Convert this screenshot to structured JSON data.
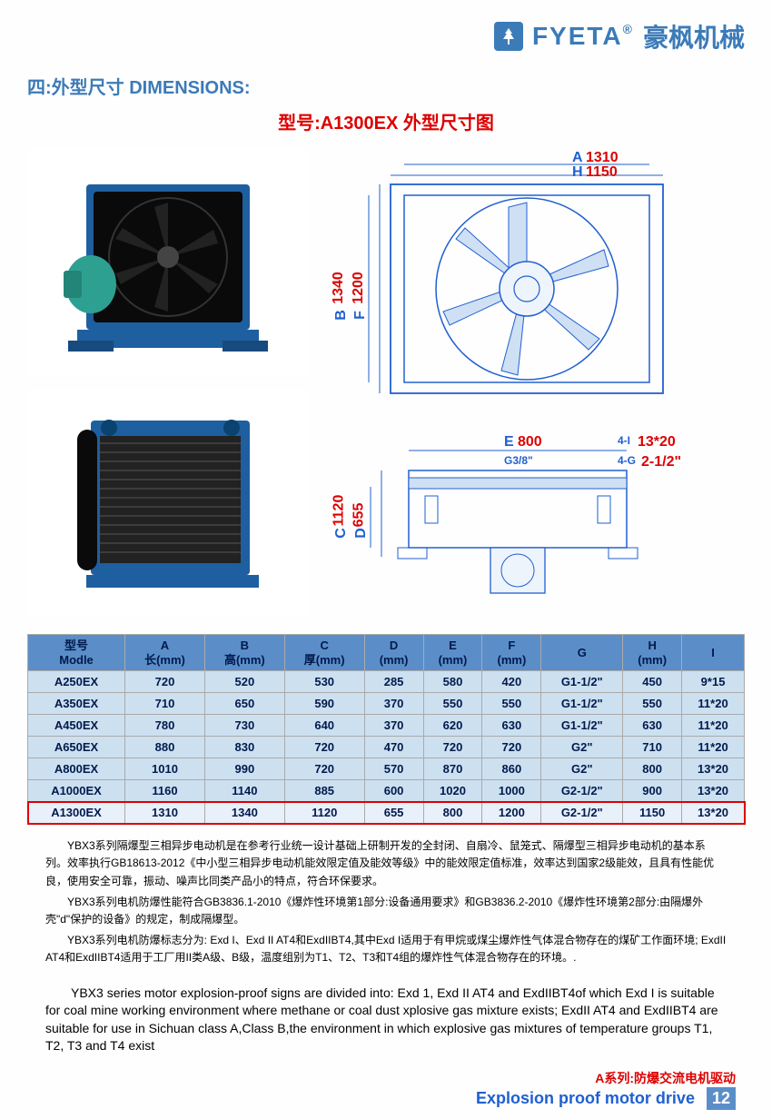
{
  "header": {
    "brand_en": "FYETA",
    "brand_cn": "豪枫机械"
  },
  "section_title": "四:外型尺寸 DIMENSIONS:",
  "figure_title": "型号:A1300EX 外型尺寸图",
  "dimensions_callouts": {
    "A_label": "A",
    "A_value": "1310",
    "H_label": "H",
    "H_value": "1150",
    "B_label": "B",
    "B_value": "1340",
    "F_label": "F",
    "F_value": "1200",
    "E_label": "E",
    "E_value": "800",
    "C_label": "C",
    "C_value": "1120",
    "D_label": "D",
    "D_value": "655",
    "I1_label": "4-I",
    "I1_value": "13*20",
    "G_label": "G3/8\"",
    "G2_label": "4-G",
    "G2_value": "2-1/2\""
  },
  "table": {
    "headers": [
      {
        "cn": "型号",
        "en": "Modle"
      },
      {
        "cn": "A",
        "en": "长(mm)"
      },
      {
        "cn": "B",
        "en": "高(mm)"
      },
      {
        "cn": "C",
        "en": "厚(mm)"
      },
      {
        "cn": "D",
        "en": "(mm)"
      },
      {
        "cn": "E",
        "en": "(mm)"
      },
      {
        "cn": "F",
        "en": "(mm)"
      },
      {
        "cn": "G",
        "en": ""
      },
      {
        "cn": "H",
        "en": "(mm)"
      },
      {
        "cn": "I",
        "en": ""
      }
    ],
    "rows": [
      [
        "A250EX",
        "720",
        "520",
        "530",
        "285",
        "580",
        "420",
        "G1-1/2\"",
        "450",
        "9*15"
      ],
      [
        "A350EX",
        "710",
        "650",
        "590",
        "370",
        "550",
        "550",
        "G1-1/2\"",
        "550",
        "11*20"
      ],
      [
        "A450EX",
        "780",
        "730",
        "640",
        "370",
        "620",
        "630",
        "G1-1/2\"",
        "630",
        "11*20"
      ],
      [
        "A650EX",
        "880",
        "830",
        "720",
        "470",
        "720",
        "720",
        "G2\"",
        "710",
        "11*20"
      ],
      [
        "A800EX",
        "1010",
        "990",
        "720",
        "570",
        "870",
        "860",
        "G2\"",
        "800",
        "13*20"
      ],
      [
        "A1000EX",
        "1160",
        "1140",
        "885",
        "600",
        "1020",
        "1000",
        "G2-1/2\"",
        "900",
        "13*20"
      ],
      [
        "A1300EX",
        "1310",
        "1340",
        "1120",
        "655",
        "800",
        "1200",
        "G2-1/2\"",
        "1150",
        "13*20"
      ]
    ],
    "highlight_index": 6
  },
  "desc_cn": [
    "YBX3系列隔爆型三相异步电动机是在参考行业统一设计基础上研制开发的全封闭、自扇冷、鼠笼式、隔爆型三相异步电动机的基本系列。效率执行GB18613-2012《中小型三相异步电动机能效限定值及能效等级》中的能效限定值标准，效率达到国家2级能效，且具有性能优良，使用安全可靠，振动、噪声比同类产品小的特点，符合环保要求。",
    "YBX3系列电机防爆性能符合GB3836.1-2010《爆炸性环境第1部分:设备通用要求》和GB3836.2-2010《爆炸性环境第2部分:由隔爆外壳\"d\"保护的设备》的规定，制成隔爆型。",
    "YBX3系列电机防爆标志分为: Exd I、Exd II AT4和ExdIIBT4,其中Exd I适用于有甲烷或煤尘爆炸性气体混合物存在的煤矿工作面环境; ExdII AT4和ExdIIBT4适用于工厂用II类A级、B级，温度组别为T1、T2、T3和T4组的爆炸性气体混合物存在的环境。."
  ],
  "desc_en": "YBX3 series motor explosion-proof signs are divided into: Exd 1, Exd II AT4 and ExdIIBT4of which Exd I is suitable for coal mine working environment where methane or coal dust xplosive gas mixture exists; ExdII AT4 and ExdIIBT4 are suitable for use in Sichuan class A,Class B,the environment in which explosive gas mixtures of temperature groups T1, T2, T3 and T4 exist",
  "footer": {
    "line1": "A系列:防爆交流电机驱动",
    "line2": "Explosion proof motor drive",
    "page_no": "12"
  },
  "colors": {
    "brand_blue": "#3b7bb8",
    "accent_red": "#d00",
    "drawing_blue": "#2060d0",
    "table_header_bg": "#5b8ec8",
    "table_cell_bg": "#cce0f0",
    "text_navy": "#001a4d"
  }
}
